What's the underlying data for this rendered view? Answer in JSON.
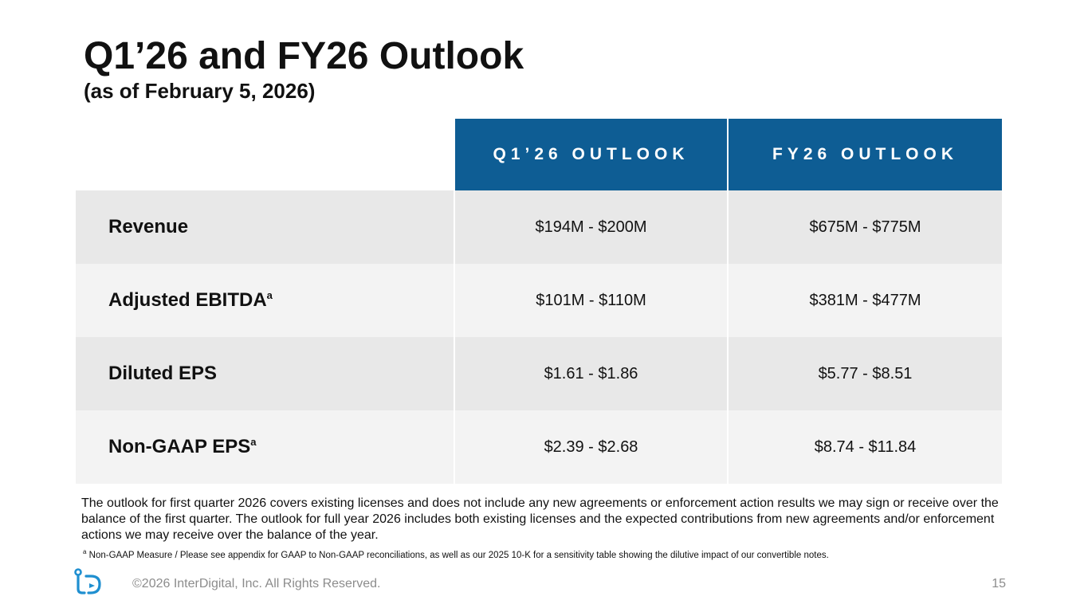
{
  "slide": {
    "title": "Q1’26 and FY26 Outlook",
    "subtitle": "(as of February 5, 2026)"
  },
  "table": {
    "headers": [
      "Q1’26 OUTLOOK",
      "FY26 OUTLOOK"
    ],
    "rows": [
      {
        "label": "Revenue",
        "marker": "",
        "q1": "$194M - $200M",
        "fy": "$675M - $775M"
      },
      {
        "label": "Adjusted EBITDA",
        "marker": "a",
        "q1": "$101M - $110M",
        "fy": "$381M - $477M"
      },
      {
        "label": "Diluted EPS",
        "marker": "",
        "q1": "$1.61 - $1.86",
        "fy": "$5.77 - $8.51"
      },
      {
        "label": "Non-GAAP EPS",
        "marker": "a",
        "q1": "$2.39 - $2.68",
        "fy": "$8.74 - $11.84"
      }
    ]
  },
  "note": "The outlook for first quarter 2026 covers existing licenses and does not include any new agreements or enforcement action results we may sign or receive over the balance of the first quarter. The outlook for full year 2026  includes both existing licenses and the expected contributions from new agreements and/or enforcement actions we may receive over the balance of the year.",
  "footnote": {
    "marker": "a",
    "text": " Non-GAAP Measure / Please see appendix for GAAP to Non-GAAP reconciliations, as well as our 2025 10-K for a sensitivity table showing the dilutive impact of our convertible notes."
  },
  "footer": {
    "logo_icon": "interdigital-logo-icon",
    "copyright": "©2026 InterDigital, Inc. All Rights Reserved.",
    "page_number": "15"
  },
  "colors": {
    "header_blue": "#0e5d94",
    "row_dark": "#e8e8e8",
    "row_light": "#f3f3f3",
    "footer_gray": "#8c8c8c"
  }
}
